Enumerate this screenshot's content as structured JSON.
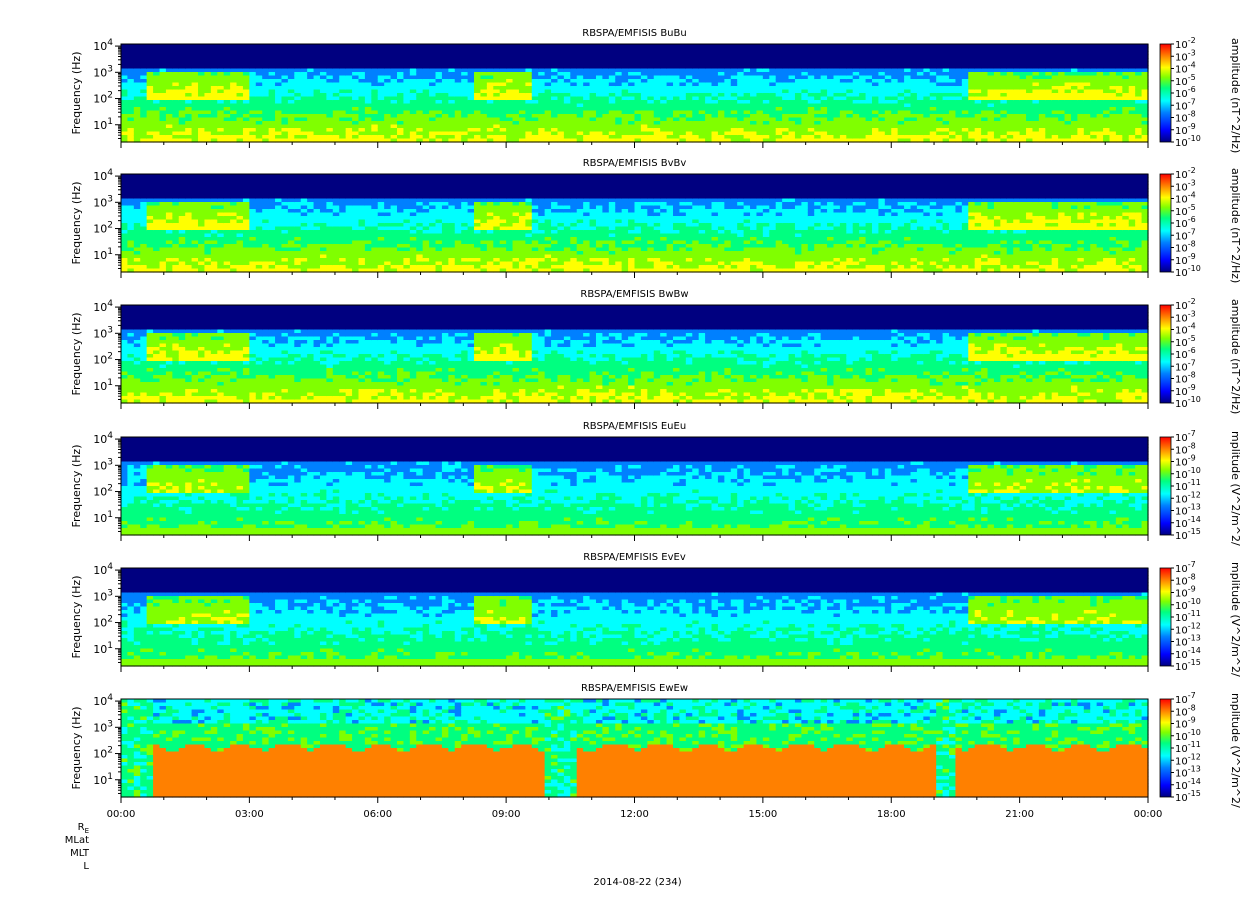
{
  "chart_data": [
    {
      "type": "heatmap",
      "title": "RBSPA/EMFISIS  BuBu",
      "ylabel": "Frequency (Hz)",
      "yscale": "log",
      "ylim": [
        2.2,
        12000
      ],
      "yticks": [
        "10^1",
        "10^2",
        "10^3",
        "10^4"
      ],
      "zlabel": "amplitude (nT^2/Hz)",
      "zscale": "log",
      "zlim": [
        1e-10,
        0.01
      ],
      "zticks": [
        "10^-2",
        "10^-3",
        "10^-4",
        "10^-5",
        "10^-6",
        "10^-7",
        "10^-8",
        "10^-9",
        "10^-10"
      ]
    },
    {
      "type": "heatmap",
      "title": "RBSPA/EMFISIS  BvBv",
      "ylabel": "Frequency (Hz)",
      "yscale": "log",
      "ylim": [
        2.2,
        12000
      ],
      "yticks": [
        "10^1",
        "10^2",
        "10^3",
        "10^4"
      ],
      "zlabel": "amplitude (nT^2/Hz)",
      "zscale": "log",
      "zlim": [
        1e-10,
        0.01
      ],
      "zticks": [
        "10^-2",
        "10^-3",
        "10^-4",
        "10^-5",
        "10^-6",
        "10^-7",
        "10^-8",
        "10^-9",
        "10^-10"
      ]
    },
    {
      "type": "heatmap",
      "title": "RBSPA/EMFISIS  BwBw",
      "ylabel": "Frequency (Hz)",
      "yscale": "log",
      "ylim": [
        2.2,
        12000
      ],
      "yticks": [
        "10^1",
        "10^2",
        "10^3",
        "10^4"
      ],
      "zlabel": "amplitude (nT^2/Hz)",
      "zscale": "log",
      "zlim": [
        1e-10,
        0.01
      ],
      "zticks": [
        "10^-2",
        "10^-3",
        "10^-4",
        "10^-5",
        "10^-6",
        "10^-7",
        "10^-8",
        "10^-9",
        "10^-10"
      ]
    },
    {
      "type": "heatmap",
      "title": "RBSPA/EMFISIS  EuEu",
      "ylabel": "Frequency (Hz)",
      "yscale": "log",
      "ylim": [
        2.2,
        12000
      ],
      "yticks": [
        "10^1",
        "10^2",
        "10^3",
        "10^4"
      ],
      "zlabel": "mplitude (V^2/m^2/",
      "zscale": "log",
      "zlim": [
        1e-15,
        1e-07
      ],
      "zticks": [
        "10^-7",
        "10^-8",
        "10^-9",
        "10^-10",
        "10^-11",
        "10^-12",
        "10^-13",
        "10^-14",
        "10^-15"
      ]
    },
    {
      "type": "heatmap",
      "title": "RBSPA/EMFISIS  EvEv",
      "ylabel": "Frequency (Hz)",
      "yscale": "log",
      "ylim": [
        2.2,
        12000
      ],
      "yticks": [
        "10^1",
        "10^2",
        "10^3",
        "10^4"
      ],
      "zlabel": "mplitude (V^2/m^2/",
      "zscale": "log",
      "zlim": [
        1e-15,
        1e-07
      ],
      "zticks": [
        "10^-7",
        "10^-8",
        "10^-9",
        "10^-10",
        "10^-11",
        "10^-12",
        "10^-13",
        "10^-14",
        "10^-15"
      ]
    },
    {
      "type": "heatmap",
      "title": "RBSPA/EMFISIS  EwEw",
      "ylabel": "Frequency (Hz)",
      "yscale": "log",
      "ylim": [
        2.2,
        12000
      ],
      "yticks": [
        "10^1",
        "10^2",
        "10^3",
        "10^4"
      ],
      "zlabel": "mplitude (V^2/m^2/",
      "zscale": "log",
      "zlim": [
        1e-15,
        1e-07
      ],
      "zticks": [
        "10^-7",
        "10^-8",
        "10^-9",
        "10^-10",
        "10^-11",
        "10^-12",
        "10^-13",
        "10^-14",
        "10^-15"
      ]
    }
  ],
  "x_axis": {
    "range": [
      "00:00",
      "24:00"
    ],
    "ticks": [
      "00:00",
      "03:00",
      "06:00",
      "09:00",
      "12:00",
      "15:00",
      "18:00",
      "21:00",
      "00:00"
    ],
    "ephemeris_labels": [
      "R_E",
      "MLat",
      "MLT",
      "L"
    ],
    "date_label": "2014-08-22 (234)"
  },
  "colorscale": [
    "#000080",
    "#0000ff",
    "#0080ff",
    "#00ffff",
    "#00ff80",
    "#80ff00",
    "#ffff00",
    "#ff8000",
    "#ff0000"
  ]
}
